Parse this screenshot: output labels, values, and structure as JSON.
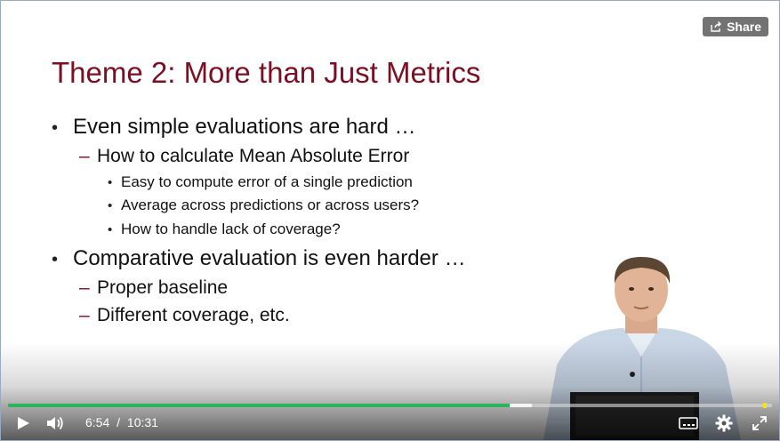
{
  "slide": {
    "title": "Theme 2:  More than Just Metrics",
    "bullets": [
      {
        "level": 1,
        "text": "Even simple evaluations are hard …"
      },
      {
        "level": 2,
        "text": "How to calculate Mean Absolute Error"
      },
      {
        "level": 3,
        "text": "Easy to compute error of a single prediction"
      },
      {
        "level": 3,
        "text": "Average across predictions or across users?"
      },
      {
        "level": 3,
        "text": "How to handle lack of coverage?"
      },
      {
        "level": 1,
        "text": "Comparative evaluation is even harder …"
      },
      {
        "level": 2,
        "text": "Proper baseline"
      },
      {
        "level": 2,
        "text": "Different coverage, etc."
      }
    ],
    "markers": {
      "l1": "•",
      "l2": "–",
      "l3": "•"
    }
  },
  "share": {
    "label": "Share",
    "icon": "share-icon"
  },
  "player": {
    "current_time": "6:54",
    "separator": "/",
    "duration": "10:31",
    "progress_fraction": 0.656,
    "accent_color": "#2bb55a",
    "marker_color": "#f3e515",
    "icons": {
      "play": "play-icon",
      "volume": "volume-icon",
      "captions": "captions-icon",
      "settings": "gear-icon",
      "fullscreen": "fullscreen-icon"
    }
  }
}
